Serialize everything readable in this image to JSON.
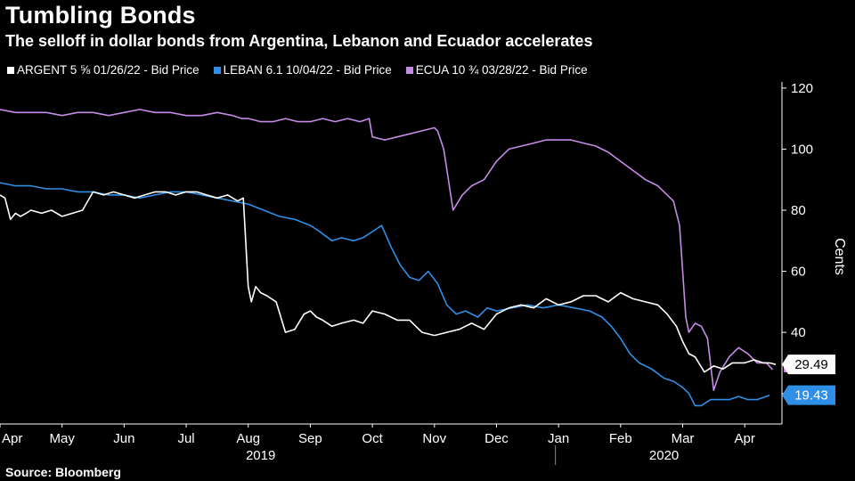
{
  "title": "Tumbling Bonds",
  "subtitle": "The selloff in dollar bonds from Argentina, Lebanon and Ecuador accelerates",
  "source": "Source: Bloomberg",
  "legend": [
    {
      "label": "ARGENT 5 ⅝ 01/26/22 - Bid Price",
      "color": "#ffffff"
    },
    {
      "label": "LEBAN 6.1 10/04/22 - Bid Price",
      "color": "#2f8fe6"
    },
    {
      "label": "ECUA 10 ¾ 03/28/22 - Bid Price",
      "color": "#c58be6"
    }
  ],
  "chart_data": {
    "type": "line",
    "title": "Tumbling Bonds",
    "ylabel": "Cents",
    "ylim": [
      10,
      122
    ],
    "yticks": [
      40,
      60,
      80,
      100,
      120
    ],
    "xlim": [
      0,
      12.6
    ],
    "month_ticks": [
      {
        "label": "Apr",
        "x": 0
      },
      {
        "label": "May",
        "x": 1
      },
      {
        "label": "Jun",
        "x": 2
      },
      {
        "label": "Jul",
        "x": 3
      },
      {
        "label": "Aug",
        "x": 4
      },
      {
        "label": "Sep",
        "x": 5
      },
      {
        "label": "Oct",
        "x": 6
      },
      {
        "label": "Nov",
        "x": 7
      },
      {
        "label": "Dec",
        "x": 8
      },
      {
        "label": "Jan",
        "x": 9
      },
      {
        "label": "Feb",
        "x": 10
      },
      {
        "label": "Mar",
        "x": 11
      },
      {
        "label": "Apr",
        "x": 12
      }
    ],
    "year_labels": [
      {
        "label": "2019",
        "x": 4.2
      },
      {
        "label": "2020",
        "x": 10.7
      }
    ],
    "year_divider_x": 8.95,
    "series": [
      {
        "name": "ARGENT 5 ⅝ 01/26/22 - Bid Price",
        "color": "#ffffff",
        "last_value": 29.49,
        "label_style": "white",
        "x": [
          0,
          0.08,
          0.17,
          0.25,
          0.33,
          0.42,
          0.5,
          0.67,
          0.83,
          1.0,
          1.17,
          1.33,
          1.5,
          1.67,
          1.83,
          2.0,
          2.17,
          2.33,
          2.5,
          2.67,
          2.83,
          3.0,
          3.17,
          3.33,
          3.5,
          3.67,
          3.83,
          3.92,
          4.0,
          4.05,
          4.12,
          4.2,
          4.3,
          4.45,
          4.6,
          4.75,
          4.9,
          5.0,
          5.1,
          5.2,
          5.35,
          5.5,
          5.7,
          5.85,
          6.0,
          6.2,
          6.4,
          6.6,
          6.8,
          7.0,
          7.2,
          7.4,
          7.6,
          7.8,
          8.0,
          8.2,
          8.4,
          8.6,
          8.8,
          9.0,
          9.2,
          9.4,
          9.6,
          9.8,
          10.0,
          10.2,
          10.4,
          10.6,
          10.75,
          10.9,
          11.0,
          11.1,
          11.2,
          11.35,
          11.5,
          11.65,
          11.8,
          12.0,
          12.15,
          12.3,
          12.4,
          12.5
        ],
        "values": [
          85,
          84,
          77,
          79,
          78,
          79,
          80,
          79,
          80,
          78,
          79,
          80,
          86,
          85,
          86,
          85,
          84,
          85,
          86,
          86,
          85,
          86,
          86,
          85,
          84,
          85,
          83,
          84,
          55,
          50,
          55,
          53,
          52,
          50,
          40,
          41,
          46,
          47,
          45,
          44,
          42,
          43,
          44,
          43,
          47,
          46,
          44,
          44,
          40,
          39,
          40,
          41,
          43,
          41,
          46,
          48,
          49,
          48,
          51,
          49,
          50,
          52,
          52,
          50,
          53,
          51,
          50,
          49,
          46,
          42,
          37,
          33,
          32,
          27,
          29,
          28,
          30,
          30,
          31,
          30,
          30,
          29.49
        ]
      },
      {
        "name": "LEBAN 6.1 10/04/22 - Bid Price",
        "color": "#2f8fe6",
        "last_value": 19.43,
        "label_style": "blue",
        "x": [
          0,
          0.25,
          0.5,
          0.75,
          1.0,
          1.25,
          1.5,
          1.75,
          2.0,
          2.25,
          2.5,
          2.75,
          3.0,
          3.25,
          3.5,
          3.75,
          4.0,
          4.25,
          4.5,
          4.75,
          5.0,
          5.15,
          5.35,
          5.5,
          5.7,
          5.85,
          6.0,
          6.15,
          6.3,
          6.45,
          6.6,
          6.75,
          6.9,
          7.05,
          7.2,
          7.35,
          7.5,
          7.7,
          7.85,
          8.0,
          8.25,
          8.5,
          8.75,
          9.0,
          9.25,
          9.5,
          9.7,
          9.85,
          10.0,
          10.15,
          10.3,
          10.5,
          10.7,
          10.85,
          11.0,
          11.1,
          11.2,
          11.3,
          11.45,
          11.6,
          11.75,
          11.9,
          12.05,
          12.2,
          12.4
        ],
        "values": [
          89,
          88,
          88,
          87,
          87,
          86,
          86,
          85,
          85,
          84,
          85,
          86,
          86,
          85,
          84,
          83,
          82,
          80,
          78,
          77,
          75,
          73,
          70,
          71,
          70,
          71,
          73,
          75,
          68,
          62,
          58,
          57,
          60,
          56,
          49,
          46,
          47,
          45,
          48,
          47,
          48,
          49,
          48,
          49,
          48,
          47,
          45,
          42,
          38,
          33,
          30,
          28,
          25,
          24,
          22,
          20,
          16,
          16,
          18,
          18,
          18,
          19,
          18,
          18,
          19.43
        ]
      },
      {
        "name": "ECUA 10 ¾ 03/28/22 - Bid Price",
        "color": "#c58be6",
        "last_value": 27.8,
        "label_style": "purple",
        "x": [
          0,
          0.25,
          0.5,
          0.75,
          1.0,
          1.25,
          1.5,
          1.75,
          2.0,
          2.25,
          2.5,
          2.75,
          3.0,
          3.25,
          3.5,
          3.75,
          3.9,
          4.0,
          4.2,
          4.4,
          4.6,
          4.8,
          5.0,
          5.2,
          5.4,
          5.6,
          5.8,
          5.95,
          6.0,
          6.2,
          6.4,
          6.6,
          6.8,
          7.0,
          7.05,
          7.15,
          7.3,
          7.45,
          7.6,
          7.8,
          8.0,
          8.2,
          8.4,
          8.6,
          8.8,
          9.0,
          9.2,
          9.4,
          9.6,
          9.8,
          10.0,
          10.2,
          10.4,
          10.6,
          10.75,
          10.85,
          10.95,
          11.0,
          11.05,
          11.1,
          11.2,
          11.3,
          11.4,
          11.5,
          11.6,
          11.75,
          11.9,
          12.05,
          12.2,
          12.35,
          12.45
        ],
        "values": [
          113,
          112,
          112,
          112,
          111,
          112,
          112,
          111,
          112,
          113,
          112,
          112,
          111,
          111,
          112,
          111,
          110,
          110,
          109,
          109,
          110,
          109,
          109,
          110,
          109,
          110,
          109,
          110,
          104,
          103,
          104,
          105,
          106,
          107,
          106,
          100,
          80,
          85,
          88,
          90,
          96,
          100,
          101,
          102,
          103,
          103,
          103,
          102,
          101,
          99,
          96,
          93,
          90,
          88,
          85,
          83,
          75,
          60,
          45,
          40,
          43,
          42,
          38,
          21,
          27,
          32,
          35,
          33,
          30,
          30,
          27.8
        ]
      }
    ]
  }
}
